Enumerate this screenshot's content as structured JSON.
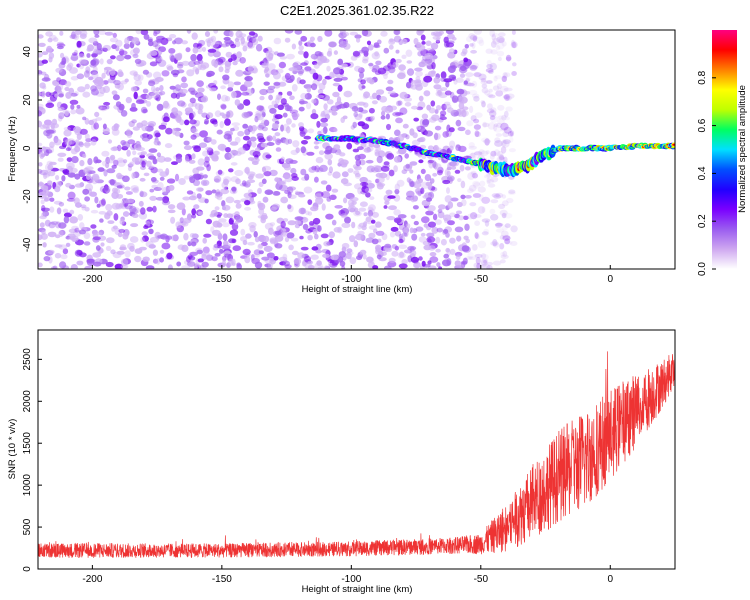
{
  "chart_data": [
    {
      "type": "heatmap",
      "title": "C2E1.2025.361.02.35.R22",
      "xlabel": "Height of straight line (km)",
      "ylabel": "Frequency (Hz)",
      "xlim": [
        -221,
        25
      ],
      "ylim": [
        -50,
        49
      ],
      "xticks": [
        "-200",
        "-150",
        "-100",
        "-50",
        "0"
      ],
      "xtick_values": [
        -200,
        -150,
        -100,
        -50,
        0
      ],
      "yticks": [
        "-40",
        "-20",
        "0",
        "20",
        "40"
      ],
      "ytick_values": [
        -40,
        -20,
        0,
        20,
        40
      ],
      "colorbar": {
        "label": "Normalized spectral amplitude",
        "range": [
          0,
          1
        ],
        "ticks": [
          "0.0",
          "0.2",
          "0.4",
          "0.6",
          "0.8"
        ],
        "tick_values": [
          0.0,
          0.2,
          0.4,
          0.6,
          0.8
        ],
        "colors": [
          "#ffffff",
          "#cfa8f0",
          "#9a5cf0",
          "#7a00ff",
          "#2000ff",
          "#0050ff",
          "#00e0ff",
          "#00ff60",
          "#c0ff00",
          "#ffff00",
          "#ff8000",
          "#ff0000",
          "#ff0080"
        ]
      },
      "noise_region": {
        "x_from": -221,
        "x_to": -45,
        "amplitude": 0.18
      },
      "signal_track": [
        {
          "x": -113,
          "y": 4
        },
        {
          "x": -100,
          "y": 4
        },
        {
          "x": -90,
          "y": 3
        },
        {
          "x": -80,
          "y": 1
        },
        {
          "x": -70,
          "y": -2
        },
        {
          "x": -60,
          "y": -4
        },
        {
          "x": -52,
          "y": -6
        },
        {
          "x": -45,
          "y": -8
        },
        {
          "x": -38,
          "y": -9
        },
        {
          "x": -32,
          "y": -7
        },
        {
          "x": -26,
          "y": -3
        },
        {
          "x": -20,
          "y": 0
        },
        {
          "x": -10,
          "y": 0
        },
        {
          "x": 0,
          "y": 0
        },
        {
          "x": 10,
          "y": 1
        },
        {
          "x": 25,
          "y": 1
        }
      ]
    },
    {
      "type": "line",
      "title": "",
      "xlabel": "Height of straight line (km)",
      "ylabel": "SNR (10 * v/v)",
      "xlim": [
        -221,
        25
      ],
      "ylim": [
        0,
        2850
      ],
      "xticks": [
        "-200",
        "-150",
        "-100",
        "-50",
        "0"
      ],
      "xtick_values": [
        -200,
        -150,
        -100,
        -50,
        0
      ],
      "yticks": [
        "0",
        "500",
        "1000",
        "1500",
        "2000",
        "2500"
      ],
      "ytick_values": [
        0,
        500,
        1000,
        1500,
        2000,
        2500
      ],
      "series": [
        {
          "name": "SNR",
          "color": "#ee3333",
          "envelope": [
            {
              "x": -221,
              "base": 220,
              "spread": 180
            },
            {
              "x": -150,
              "base": 220,
              "spread": 170
            },
            {
              "x": -100,
              "base": 240,
              "spread": 180
            },
            {
              "x": -60,
              "base": 280,
              "spread": 200
            },
            {
              "x": -50,
              "base": 300,
              "spread": 250
            },
            {
              "x": -40,
              "base": 500,
              "spread": 600
            },
            {
              "x": -30,
              "base": 800,
              "spread": 900
            },
            {
              "x": -20,
              "base": 1100,
              "spread": 1100
            },
            {
              "x": -10,
              "base": 1300,
              "spread": 1200
            },
            {
              "x": 0,
              "base": 1600,
              "spread": 1100
            },
            {
              "x": 10,
              "base": 1900,
              "spread": 900
            },
            {
              "x": 20,
              "base": 2200,
              "spread": 600
            },
            {
              "x": 25,
              "base": 2400,
              "spread": 400
            }
          ]
        }
      ]
    }
  ]
}
